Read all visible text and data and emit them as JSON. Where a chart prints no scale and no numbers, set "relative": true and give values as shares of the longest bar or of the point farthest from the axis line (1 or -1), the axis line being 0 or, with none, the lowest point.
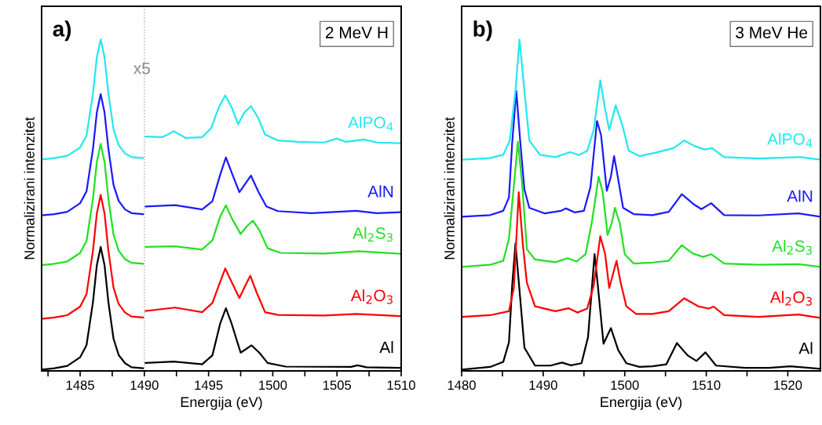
{
  "chart_data": [
    {
      "type": "line",
      "relative": true,
      "xlabel": "Energija (eV)",
      "ylabel": "Normalizirani intenzitet",
      "annotations": [
        "a)",
        "2 MeV H",
        "x5"
      ],
      "xlim": [
        1482,
        1510
      ],
      "xticks": [
        {
          "value": 1482.5,
          "label": null
        },
        1485,
        {
          "value": 1487.5,
          "label": null
        },
        1490,
        {
          "value": 1492.5,
          "label": null
        },
        1495,
        {
          "value": 1497.5,
          "label": null
        },
        1500,
        {
          "value": 1502.5,
          "label": null
        },
        1505,
        {
          "value": 1507.5,
          "label": null
        },
        1510
      ],
      "ref_lines": [
        {
          "axis": "x",
          "value": 1490,
          "color": "#a6a6a6",
          "line_style": "dotted"
        }
      ],
      "series": [
        {
          "name": "Al",
          "color": "#000000",
          "x": [
            1482,
            1483,
            1484,
            1485,
            1485.5,
            1486,
            1486.3,
            1486.6,
            1486.9,
            1487.2,
            1487.6,
            1488,
            1488.5,
            1489,
            1489.9,
            1490,
            1490.1,
            1492.3,
            1494.5,
            1495.3,
            1495.9,
            1496.35,
            1496.8,
            1497.5,
            1498.35,
            1498.95,
            1499.6,
            1501.0,
            1506.1,
            1506.6,
            1507.3,
            1510
          ],
          "values": [
            0.004,
            0.008,
            0.015,
            0.041,
            0.078,
            0.208,
            0.319,
            0.374,
            0.319,
            0.208,
            0.097,
            0.048,
            0.023,
            0.011,
            0.008,
            null,
            0.024,
            0.028,
            0.02,
            0.047,
            0.142,
            0.189,
            0.142,
            0.055,
            0.077,
            0.055,
            0.024,
            0.013,
            0.012,
            0.017,
            0.011,
            0.009
          ]
        },
        {
          "name": "Al$_{2}$O$_{3}$",
          "color": "#ff0000",
          "x": [
            1482,
            1483,
            1484,
            1485,
            1485.5,
            1486,
            1486.3,
            1486.6,
            1486.9,
            1487.2,
            1487.6,
            1488,
            1488.5,
            1489,
            1489.9,
            1490,
            1490.1,
            1492.4,
            1494.5,
            1495.3,
            1495.9,
            1496.3,
            1496.8,
            1497.4,
            1497.9,
            1498.25,
            1498.75,
            1499.4,
            1500.4,
            1504.0,
            1506.5,
            1510
          ],
          "values": [
            0.157,
            0.161,
            0.168,
            0.194,
            0.232,
            0.363,
            0.475,
            0.531,
            0.475,
            0.363,
            0.251,
            0.202,
            0.176,
            0.164,
            0.161,
            null,
            0.181,
            0.191,
            0.177,
            0.205,
            0.268,
            0.309,
            0.268,
            0.22,
            0.26,
            0.287,
            0.236,
            0.177,
            0.169,
            0.167,
            0.172,
            0.165
          ]
        },
        {
          "name": "Al$_{2}$S$_{3}$",
          "color": "#22e022",
          "x": [
            1482,
            1483,
            1484,
            1485,
            1485.5,
            1486,
            1486.3,
            1486.6,
            1486.9,
            1487.2,
            1487.6,
            1488,
            1488.5,
            1489,
            1489.9,
            1490,
            1490.1,
            1492.4,
            1494.5,
            1495.3,
            1495.9,
            1496.35,
            1496.8,
            1497.5,
            1498.0,
            1498.45,
            1498.95,
            1499.6,
            1500.6,
            1504.0,
            1506.7,
            1510
          ],
          "values": [
            0.319,
            0.323,
            0.33,
            0.356,
            0.392,
            0.52,
            0.63,
            0.685,
            0.63,
            0.52,
            0.411,
            0.363,
            0.337,
            0.326,
            0.323,
            null,
            0.374,
            0.376,
            0.366,
            0.394,
            0.465,
            0.5,
            0.461,
            0.413,
            0.437,
            0.453,
            0.425,
            0.37,
            0.356,
            0.354,
            0.361,
            0.353
          ]
        },
        {
          "name": "AlN",
          "color": "#1a1aff",
          "x": [
            1482,
            1483,
            1484,
            1485,
            1485.5,
            1486,
            1486.3,
            1486.6,
            1486.9,
            1487.2,
            1487.6,
            1488,
            1488.5,
            1489,
            1489.9,
            1490,
            1490.1,
            1492.4,
            1494.5,
            1495.3,
            1495.9,
            1496.35,
            1496.8,
            1497.4,
            1497.9,
            1498.3,
            1498.85,
            1499.5,
            1500.4,
            1503.0,
            1506.5,
            1508.1,
            1510
          ],
          "values": [
            0.469,
            0.473,
            0.48,
            0.506,
            0.542,
            0.67,
            0.78,
            0.835,
            0.78,
            0.67,
            0.561,
            0.513,
            0.487,
            0.476,
            0.473,
            null,
            0.496,
            0.5,
            0.487,
            0.512,
            0.591,
            0.644,
            0.598,
            0.539,
            0.567,
            0.589,
            0.543,
            0.496,
            0.482,
            0.476,
            0.483,
            0.476,
            0.479
          ]
        },
        {
          "name": "AlPO$_{4}$",
          "color": "#22e8f0",
          "x": [
            1482,
            1483,
            1484,
            1485,
            1485.5,
            1486,
            1486.3,
            1486.6,
            1486.9,
            1487.2,
            1487.6,
            1488,
            1488.5,
            1489,
            1489.9,
            1490,
            1490.1,
            1491.4,
            1492.3,
            1493.2,
            1494.5,
            1495.2,
            1495.8,
            1496.3,
            1496.8,
            1497.3,
            1497.8,
            1498.3,
            1498.85,
            1499.4,
            1500.4,
            1502.0,
            1504.0,
            1505.0,
            1505.7,
            1507.1,
            1508.1,
            1510
          ],
          "values": [
            0.638,
            0.642,
            0.649,
            0.674,
            0.71,
            0.837,
            0.946,
            1.0,
            0.946,
            0.837,
            0.729,
            0.681,
            0.656,
            0.645,
            0.642,
            null,
            0.707,
            0.705,
            0.723,
            0.703,
            0.705,
            0.732,
            0.795,
            0.831,
            0.795,
            0.744,
            0.78,
            0.799,
            0.764,
            0.713,
            0.695,
            0.691,
            0.689,
            0.701,
            0.691,
            0.698,
            0.689,
            0.687
          ]
        }
      ]
    },
    {
      "type": "line",
      "relative": true,
      "xlabel": "Energija (eV)",
      "ylabel": "Normalizirani intenzitet",
      "annotations": [
        "b)",
        "3 MeV He"
      ],
      "xlim": [
        1480,
        1524
      ],
      "xticks": [
        1480,
        {
          "value": 1485,
          "label": null
        },
        1490,
        {
          "value": 1495,
          "label": null
        },
        1500,
        {
          "value": 1505,
          "label": null
        },
        1510,
        {
          "value": 1515,
          "label": null
        },
        1520
      ],
      "series": [
        {
          "name": "Al",
          "color": "#000000",
          "x": [
            1480,
            1483.5,
            1485.1,
            1485.8,
            1486.2,
            1486.6,
            1487.1,
            1487.7,
            1489.0,
            1490.9,
            1492.3,
            1493.4,
            1494.7,
            1495.5,
            1496.0,
            1496.3,
            1496.7,
            1497.4,
            1498.3,
            1499.2,
            1500.2,
            1501.8,
            1503.4,
            1505.1,
            1506.4,
            1507.7,
            1508.8,
            1509.9,
            1511.2,
            1514.8,
            1517.7,
            1520.3,
            1524
          ],
          "values": [
            0.004,
            0.012,
            0.027,
            0.086,
            0.258,
            0.384,
            0.242,
            0.07,
            0.016,
            0.016,
            0.025,
            0.017,
            0.023,
            0.102,
            0.258,
            0.352,
            0.258,
            0.082,
            0.129,
            0.063,
            0.023,
            0.012,
            0.014,
            0.02,
            0.084,
            0.047,
            0.03,
            0.056,
            0.016,
            0.009,
            0.009,
            0.014,
            0.006
          ]
        },
        {
          "name": "Al$_{2}$O$_{3}$",
          "color": "#ff0000",
          "x": [
            1480,
            1483.5,
            1485.8,
            1486.4,
            1487.0,
            1487.5,
            1488.0,
            1489.0,
            1491.5,
            1493.1,
            1494.2,
            1495.4,
            1496.2,
            1497.0,
            1497.6,
            1498.1,
            1499.0,
            1499.5,
            1500.2,
            1501.4,
            1503.4,
            1505.4,
            1507.3,
            1509.0,
            1510.3,
            1510.9,
            1512.2,
            1516.4,
            1521.3,
            1524
          ],
          "values": [
            0.163,
            0.168,
            0.18,
            0.25,
            0.539,
            0.383,
            0.266,
            0.195,
            0.18,
            0.189,
            0.176,
            0.188,
            0.258,
            0.406,
            0.352,
            0.25,
            0.332,
            0.266,
            0.195,
            0.172,
            0.172,
            0.18,
            0.219,
            0.195,
            0.188,
            0.194,
            0.168,
            0.163,
            0.17,
            0.16
          ]
        },
        {
          "name": "Al$_{2}$S$_{3}$",
          "color": "#22e022",
          "x": [
            1480,
            1483.5,
            1485.1,
            1485.8,
            1486.3,
            1486.9,
            1487.4,
            1488.0,
            1489.0,
            1491.5,
            1493.0,
            1494.1,
            1495.2,
            1496.0,
            1496.8,
            1497.3,
            1497.9,
            1498.4,
            1498.8,
            1499.4,
            1500.0,
            1501.1,
            1503.4,
            1505.4,
            1507.0,
            1508.3,
            1509.6,
            1510.6,
            1512.2,
            1516.4,
            1521.3,
            1524
          ],
          "values": [
            0.314,
            0.32,
            0.332,
            0.398,
            0.531,
            0.691,
            0.57,
            0.367,
            0.336,
            0.328,
            0.34,
            0.33,
            0.352,
            0.453,
            0.586,
            0.539,
            0.41,
            0.445,
            0.492,
            0.445,
            0.352,
            0.324,
            0.327,
            0.332,
            0.379,
            0.355,
            0.344,
            0.352,
            0.324,
            0.32,
            0.322,
            0.314
          ]
        },
        {
          "name": "AlN",
          "color": "#1a1aff",
          "x": [
            1480,
            1483.5,
            1485.1,
            1485.8,
            1486.2,
            1486.7,
            1487.2,
            1487.7,
            1488.3,
            1490.2,
            1492.2,
            1492.8,
            1493.9,
            1495.0,
            1495.8,
            1496.6,
            1497.1,
            1497.8,
            1498.3,
            1498.7,
            1499.2,
            1499.8,
            1501.1,
            1503.4,
            1505.4,
            1507.0,
            1508.5,
            1509.4,
            1510.6,
            1512.2,
            1516.4,
            1521.3,
            1524
          ],
          "values": [
            0.465,
            0.47,
            0.483,
            0.523,
            0.688,
            0.845,
            0.688,
            0.547,
            0.492,
            0.475,
            0.483,
            0.49,
            0.478,
            0.483,
            0.555,
            0.754,
            0.711,
            0.543,
            0.586,
            0.648,
            0.578,
            0.492,
            0.473,
            0.47,
            0.48,
            0.533,
            0.502,
            0.488,
            0.506,
            0.47,
            0.469,
            0.475,
            0.465
          ]
        },
        {
          "name": "AlPO$_{4}$",
          "color": "#22e8f0",
          "x": [
            1480,
            1483.5,
            1485.1,
            1485.9,
            1486.6,
            1487.1,
            1487.7,
            1488.3,
            1489.6,
            1491.5,
            1493.3,
            1494.4,
            1495.4,
            1496.2,
            1497.0,
            1497.6,
            1498.1,
            1498.9,
            1499.7,
            1500.5,
            1501.8,
            1503.4,
            1506.0,
            1507.3,
            1508.6,
            1509.8,
            1510.7,
            1512.2,
            1516.4,
            1521.6,
            1524
          ],
          "values": [
            0.637,
            0.642,
            0.652,
            0.695,
            0.844,
            1.0,
            0.844,
            0.695,
            0.652,
            0.645,
            0.66,
            0.651,
            0.664,
            0.727,
            0.877,
            0.789,
            0.727,
            0.801,
            0.742,
            0.664,
            0.648,
            0.656,
            0.672,
            0.695,
            0.678,
            0.668,
            0.672,
            0.645,
            0.641,
            0.645,
            0.637
          ]
        }
      ]
    }
  ]
}
